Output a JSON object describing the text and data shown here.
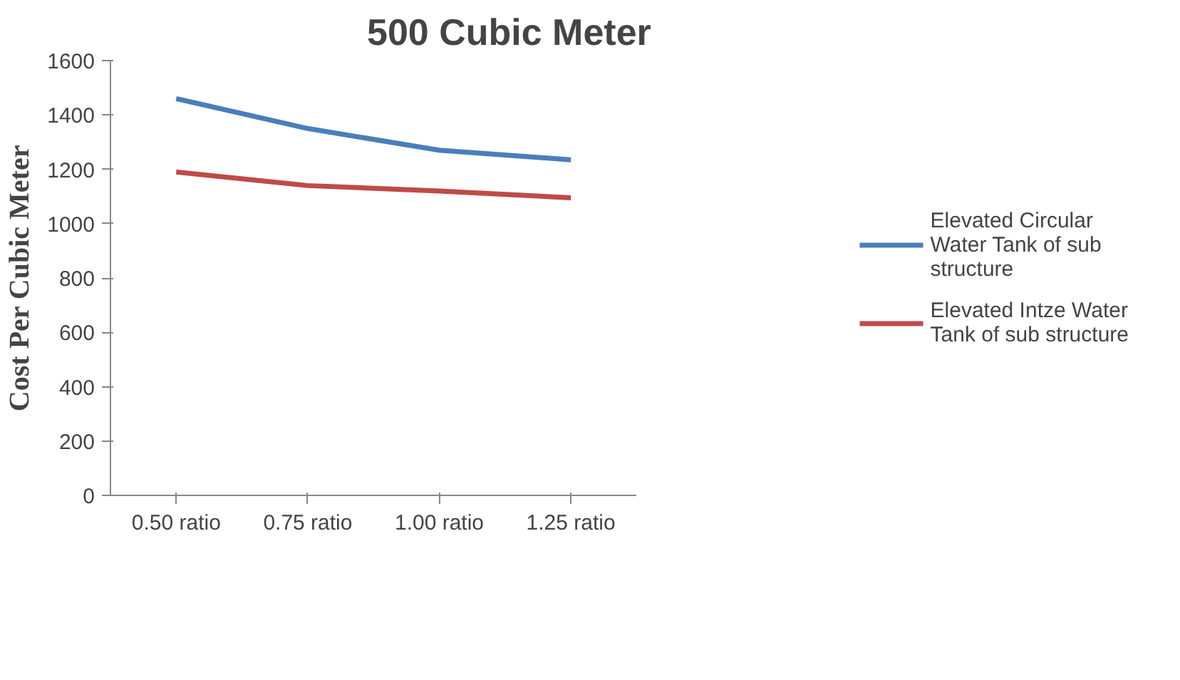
{
  "chart_data": {
    "type": "line",
    "title": "500 Cubic Meter",
    "ylabel": "Cost Per Cubic Meter",
    "categories": [
      "0.50 ratio",
      "0.75 ratio",
      "1.00 ratio",
      "1.25 ratio"
    ],
    "series": [
      {
        "name": "Elevated Circular Water Tank of sub structure",
        "color": "#4a7ebb",
        "values": [
          1460,
          1350,
          1270,
          1235
        ]
      },
      {
        "name": "Elevated Intze Water Tank of sub structure",
        "color": "#be4b48",
        "values": [
          1190,
          1140,
          1120,
          1095
        ]
      }
    ],
    "ylim": [
      0,
      1600
    ],
    "yticks": [
      0,
      200,
      400,
      600,
      800,
      1000,
      1200,
      1400,
      1600
    ],
    "grid": false,
    "legend": "right",
    "marker": "none",
    "line_style": "solid"
  }
}
